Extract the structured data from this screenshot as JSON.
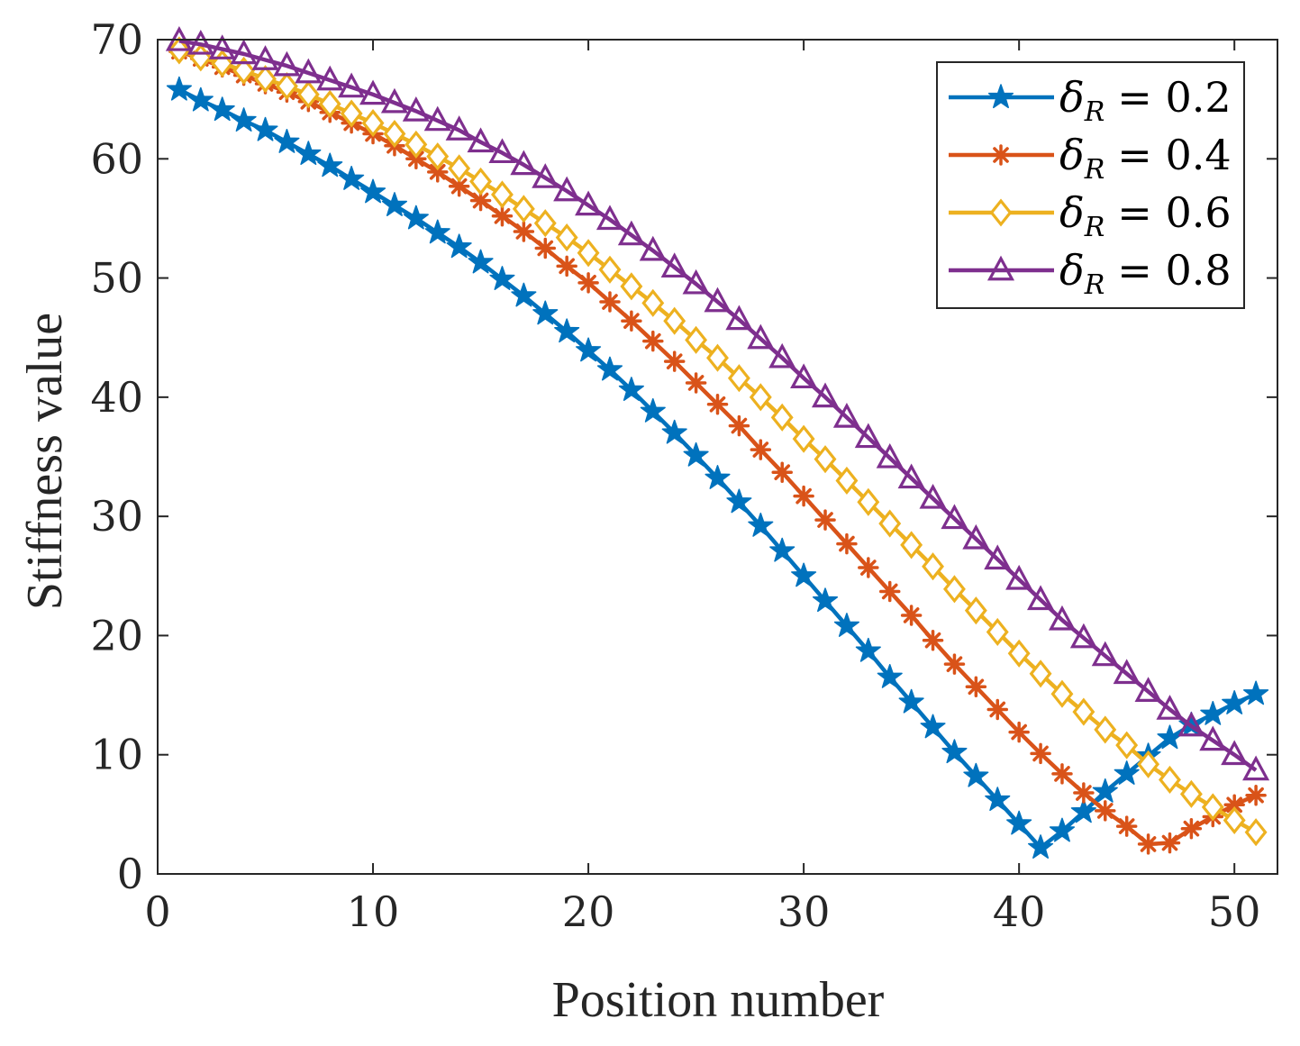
{
  "chart_data": {
    "type": "line",
    "xlabel": "Position number",
    "ylabel": "Stiffness value",
    "xlim": [
      0,
      52
    ],
    "ylim": [
      0,
      70
    ],
    "xticks": [
      0,
      10,
      20,
      30,
      40,
      50
    ],
    "yticks": [
      0,
      10,
      20,
      30,
      40,
      50,
      60,
      70
    ],
    "x_tick_labels": [
      "0",
      "10",
      "20",
      "30",
      "40",
      "50"
    ],
    "y_tick_labels": [
      "0",
      "10",
      "20",
      "30",
      "40",
      "50",
      "60",
      "70"
    ],
    "grid": false,
    "legend_position": "top-right",
    "x": [
      1,
      2,
      3,
      4,
      5,
      6,
      7,
      8,
      9,
      10,
      11,
      12,
      13,
      14,
      15,
      16,
      17,
      18,
      19,
      20,
      21,
      22,
      23,
      24,
      25,
      26,
      27,
      28,
      29,
      30,
      31,
      32,
      33,
      34,
      35,
      36,
      37,
      38,
      39,
      40,
      41,
      42,
      43,
      44,
      45,
      46,
      47,
      48,
      49,
      50,
      51
    ],
    "series": [
      {
        "name": "δR = 0.2",
        "legend_symbol": "δ",
        "legend_subscript": "R",
        "legend_value": "= 0.2",
        "color": "#0072BD",
        "marker": "star",
        "values": [
          65.8,
          64.9,
          64.1,
          63.2,
          62.4,
          61.4,
          60.4,
          59.4,
          58.3,
          57.2,
          56.1,
          55.0,
          53.8,
          52.6,
          51.3,
          49.9,
          48.5,
          47.0,
          45.5,
          43.9,
          42.3,
          40.6,
          38.8,
          37.0,
          35.1,
          33.2,
          31.2,
          29.2,
          27.1,
          25.0,
          22.9,
          20.8,
          18.7,
          16.5,
          14.4,
          12.3,
          10.2,
          8.2,
          6.2,
          4.2,
          2.2,
          3.6,
          5.2,
          6.9,
          8.4,
          9.9,
          11.4,
          12.5,
          13.4,
          14.3,
          15.1
        ]
      },
      {
        "name": "δR = 0.4",
        "legend_symbol": "δ",
        "legend_subscript": "R",
        "legend_value": "= 0.4",
        "color": "#D95319",
        "marker": "asterisk",
        "values": [
          69.0,
          68.4,
          67.7,
          67.0,
          66.3,
          65.6,
          64.8,
          63.9,
          63.0,
          62.1,
          61.1,
          60.0,
          58.9,
          57.7,
          56.5,
          55.2,
          53.9,
          52.5,
          51.0,
          49.6,
          48.0,
          46.4,
          44.7,
          43.0,
          41.2,
          39.4,
          37.6,
          35.6,
          33.7,
          31.7,
          29.7,
          27.7,
          25.7,
          23.7,
          21.7,
          19.6,
          17.6,
          15.7,
          13.8,
          11.9,
          10.1,
          8.4,
          6.8,
          5.3,
          4.0,
          2.5,
          2.6,
          3.8,
          4.8,
          5.8,
          6.6
        ]
      },
      {
        "name": "δR = 0.6",
        "legend_symbol": "δ",
        "legend_subscript": "R",
        "legend_value": "= 0.6",
        "color": "#EDB120",
        "marker": "diamond",
        "values": [
          69.1,
          68.5,
          68.0,
          67.4,
          66.7,
          66.1,
          65.4,
          64.6,
          63.8,
          63.0,
          62.1,
          61.2,
          60.2,
          59.2,
          58.1,
          57.0,
          55.8,
          54.6,
          53.4,
          52.1,
          50.7,
          49.3,
          47.9,
          46.4,
          44.8,
          43.3,
          41.6,
          40.0,
          38.3,
          36.5,
          34.8,
          33.0,
          31.2,
          29.4,
          27.6,
          25.8,
          23.9,
          22.1,
          20.3,
          18.5,
          16.8,
          15.1,
          13.6,
          12.1,
          10.8,
          9.2,
          7.9,
          6.7,
          5.6,
          4.5,
          3.5
        ]
      },
      {
        "name": "δR = 0.8",
        "legend_symbol": "δ",
        "legend_subscript": "R",
        "legend_value": "= 0.8",
        "color": "#7E2F8E",
        "marker": "triangle",
        "values": [
          69.9,
          69.6,
          69.2,
          68.8,
          68.3,
          67.8,
          67.2,
          66.6,
          66.0,
          65.4,
          64.7,
          64.0,
          63.2,
          62.4,
          61.4,
          60.5,
          59.5,
          58.4,
          57.3,
          56.1,
          54.9,
          53.6,
          52.3,
          50.9,
          49.5,
          48.0,
          46.5,
          44.9,
          43.3,
          41.6,
          40.0,
          38.3,
          36.6,
          34.9,
          33.2,
          31.5,
          29.8,
          28.1,
          26.4,
          24.7,
          23.0,
          21.3,
          19.8,
          18.3,
          16.8,
          15.3,
          13.8,
          12.4,
          11.2,
          10.0,
          8.7
        ]
      }
    ]
  }
}
